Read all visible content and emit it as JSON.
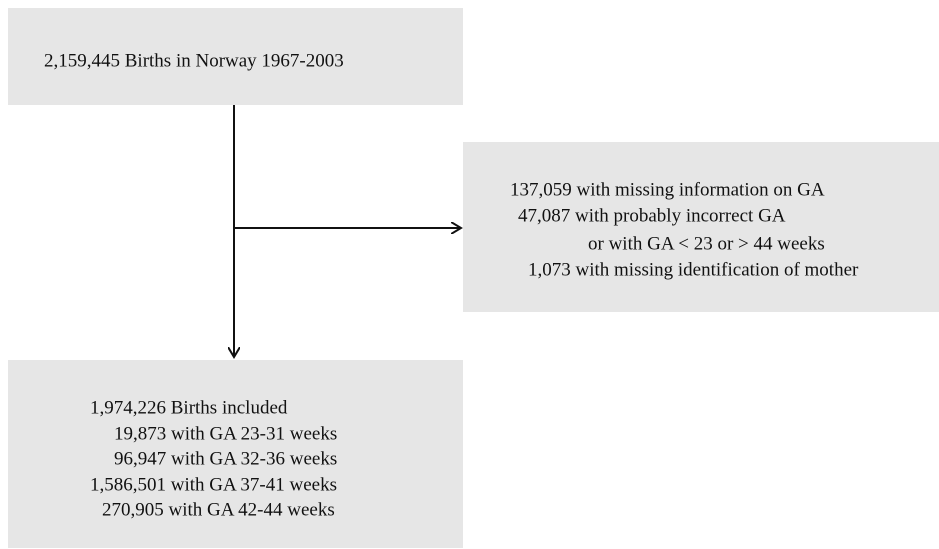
{
  "nodes": [
    {
      "lines": [
        "2,159,445 Births in Norway 1967-2003"
      ]
    },
    {
      "lines": [
        "137,059 with missing information on GA",
        "47,087 with probably incorrect GA",
        "or with GA < 23 or > 44 weeks",
        "1,073 with missing identification of mother"
      ]
    },
    {
      "lines": [
        "1,974,226 Births included",
        "19,873 with GA 23-31 weeks",
        "96,947 with GA 32-36 weeks",
        "1,586,501 with GA 37-41 weeks",
        "270,905 with GA 42-44 weeks"
      ]
    }
  ]
}
